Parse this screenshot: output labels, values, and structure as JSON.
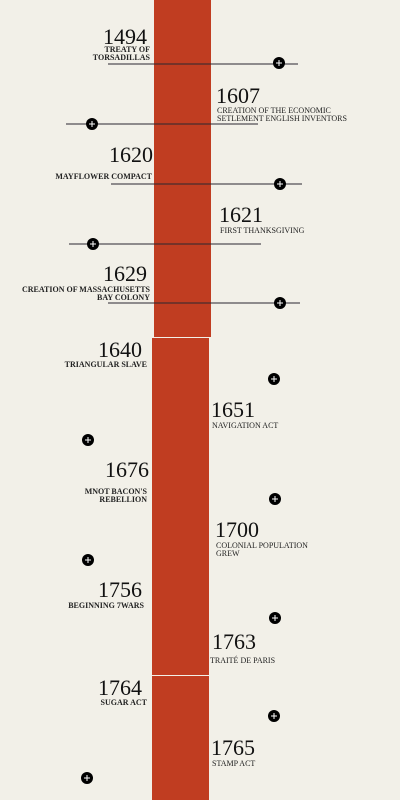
{
  "events": [
    {
      "year": "1494",
      "label_lines": [
        "TREATY OF",
        "TORSADILLAS"
      ]
    },
    {
      "year": "1607",
      "label_lines": [
        "CREATION OF THE ECONOMIC",
        "SETLEMENT  ENGLISH INVENTORS"
      ]
    },
    {
      "year": "1620",
      "label_lines": [
        "MAYFLOWER COMPACT"
      ]
    },
    {
      "year": "1621",
      "label_lines": [
        "FIRST THANKSGIVING"
      ]
    },
    {
      "year": "1629",
      "label_lines": [
        "CREATION OF MASSACHUSETTS",
        "BAY COLONY"
      ]
    },
    {
      "year": "1640",
      "label_lines": [
        "TRIANGULAR SLAVE"
      ]
    },
    {
      "year": "1651",
      "label_lines": [
        "NAVIGATION ACT"
      ]
    },
    {
      "year": "1676",
      "label_lines": [
        "MNOT BACON'S",
        "REBELLION"
      ]
    },
    {
      "year": "1700",
      "label_lines": [
        "COLONIAL POPULATION",
        "GREW"
      ]
    },
    {
      "year": "1756",
      "label_lines": [
        "BEGINNING 7WARS"
      ]
    },
    {
      "year": "1763",
      "label_lines": [
        "TRAITÉ DE PARIS"
      ]
    },
    {
      "year": "1764",
      "label_lines": [
        "SUGAR ACT"
      ]
    },
    {
      "year": "1765",
      "label_lines": [
        "STAMP ACT"
      ]
    }
  ]
}
